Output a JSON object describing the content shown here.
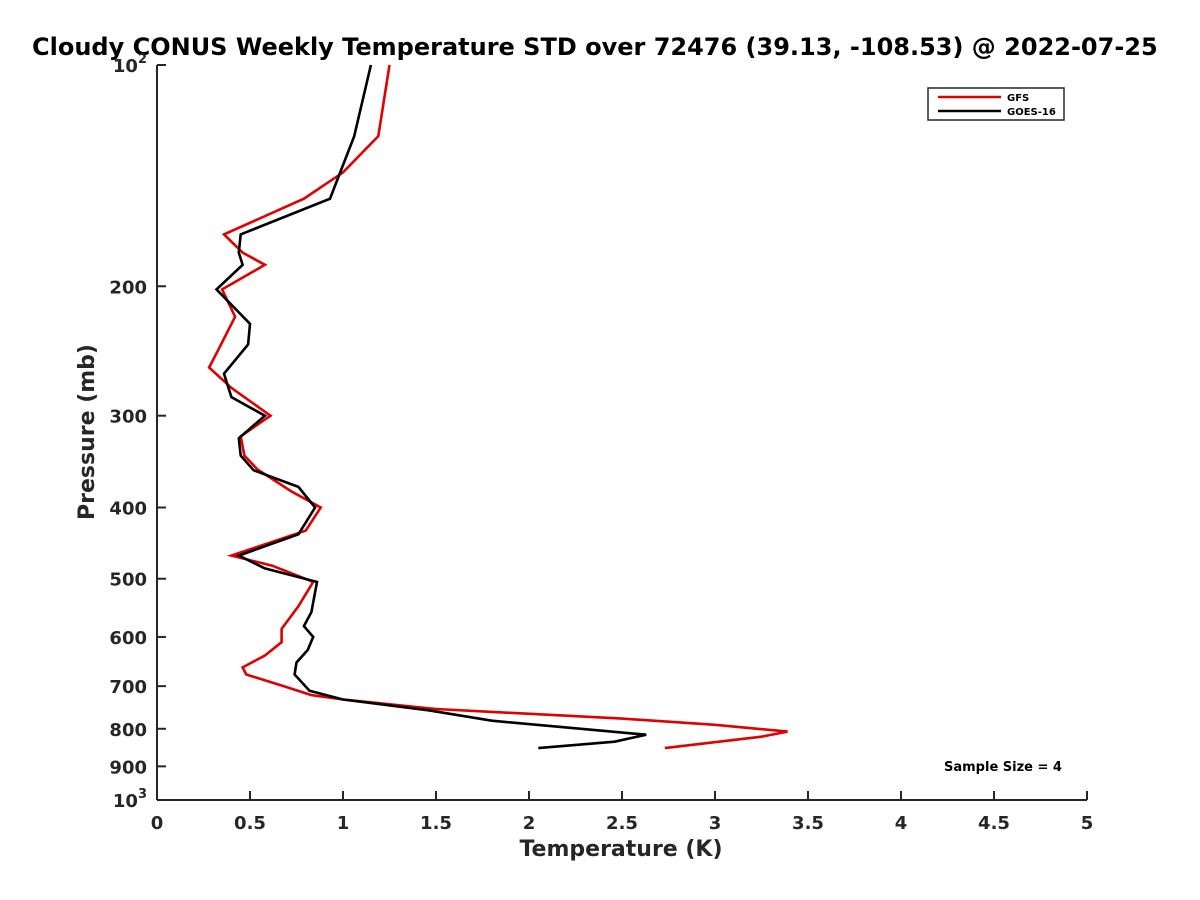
{
  "chart_data": {
    "type": "line",
    "title": "Cloudy CONUS Weekly Temperature STD over 72476 (39.13, -108.53) @ 2022-07-25",
    "xlabel": "Temperature (K)",
    "ylabel": "Pressure (mb)",
    "xlim": [
      0,
      5
    ],
    "ylim": [
      100,
      1000
    ],
    "y_scale": "log",
    "y_reversed": true,
    "grid": false,
    "legend_position": "top-right",
    "x_ticks": [
      0,
      0.5,
      1,
      1.5,
      2,
      2.5,
      3,
      3.5,
      4,
      4.5,
      5
    ],
    "x_tick_labels": [
      "0",
      "0.5",
      "1",
      "1.5",
      "2",
      "2.5",
      "3",
      "3.5",
      "4",
      "4.5",
      "5"
    ],
    "y_ticks": [
      {
        "value": 100,
        "base": "10",
        "exp": "2"
      },
      {
        "value": 200,
        "label": "200"
      },
      {
        "value": 300,
        "label": "300"
      },
      {
        "value": 400,
        "label": "400"
      },
      {
        "value": 500,
        "label": "500"
      },
      {
        "value": 600,
        "label": "600"
      },
      {
        "value": 700,
        "label": "700"
      },
      {
        "value": 800,
        "label": "800"
      },
      {
        "value": 900,
        "label": "900"
      },
      {
        "value": 1000,
        "base": "10",
        "exp": "3"
      }
    ],
    "series": [
      {
        "name": "GFS",
        "color": "#e00000",
        "points": [
          [
            1.25,
            100
          ],
          [
            1.19,
            125
          ],
          [
            1.0,
            140
          ],
          [
            0.79,
            152
          ],
          [
            0.36,
            170
          ],
          [
            0.46,
            180
          ],
          [
            0.58,
            187
          ],
          [
            0.35,
            202
          ],
          [
            0.42,
            220
          ],
          [
            0.33,
            244
          ],
          [
            0.28,
            258
          ],
          [
            0.4,
            275
          ],
          [
            0.61,
            300
          ],
          [
            0.45,
            320
          ],
          [
            0.47,
            340
          ],
          [
            0.54,
            355
          ],
          [
            0.72,
            380
          ],
          [
            0.88,
            400
          ],
          [
            0.8,
            430
          ],
          [
            0.4,
            465
          ],
          [
            0.62,
            480
          ],
          [
            0.84,
            505
          ],
          [
            0.76,
            545
          ],
          [
            0.67,
            585
          ],
          [
            0.67,
            610
          ],
          [
            0.58,
            636
          ],
          [
            0.46,
            660
          ],
          [
            0.48,
            675
          ],
          [
            0.68,
            700
          ],
          [
            0.83,
            720
          ],
          [
            1.0,
            730
          ],
          [
            1.5,
            752
          ],
          [
            2.5,
            775
          ],
          [
            3.0,
            790
          ],
          [
            3.39,
            807
          ],
          [
            3.25,
            820
          ],
          [
            2.73,
            850
          ]
        ]
      },
      {
        "name": "GOES-16",
        "color": "#000000",
        "points": [
          [
            1.15,
            100
          ],
          [
            1.06,
            125
          ],
          [
            0.93,
            152
          ],
          [
            0.45,
            170
          ],
          [
            0.44,
            180
          ],
          [
            0.46,
            187
          ],
          [
            0.32,
            202
          ],
          [
            0.5,
            225
          ],
          [
            0.49,
            240
          ],
          [
            0.36,
            263
          ],
          [
            0.4,
            283
          ],
          [
            0.58,
            300
          ],
          [
            0.44,
            322
          ],
          [
            0.45,
            340
          ],
          [
            0.52,
            356
          ],
          [
            0.76,
            375
          ],
          [
            0.85,
            400
          ],
          [
            0.76,
            435
          ],
          [
            0.44,
            465
          ],
          [
            0.58,
            484
          ],
          [
            0.86,
            505
          ],
          [
            0.83,
            555
          ],
          [
            0.79,
            580
          ],
          [
            0.84,
            600
          ],
          [
            0.81,
            625
          ],
          [
            0.75,
            650
          ],
          [
            0.74,
            675
          ],
          [
            0.82,
            710
          ],
          [
            1.0,
            730
          ],
          [
            1.46,
            755
          ],
          [
            1.8,
            780
          ],
          [
            2.28,
            800
          ],
          [
            2.63,
            815
          ],
          [
            2.46,
            833
          ],
          [
            2.05,
            850
          ]
        ]
      }
    ],
    "annotation": "Sample Size = 4"
  }
}
